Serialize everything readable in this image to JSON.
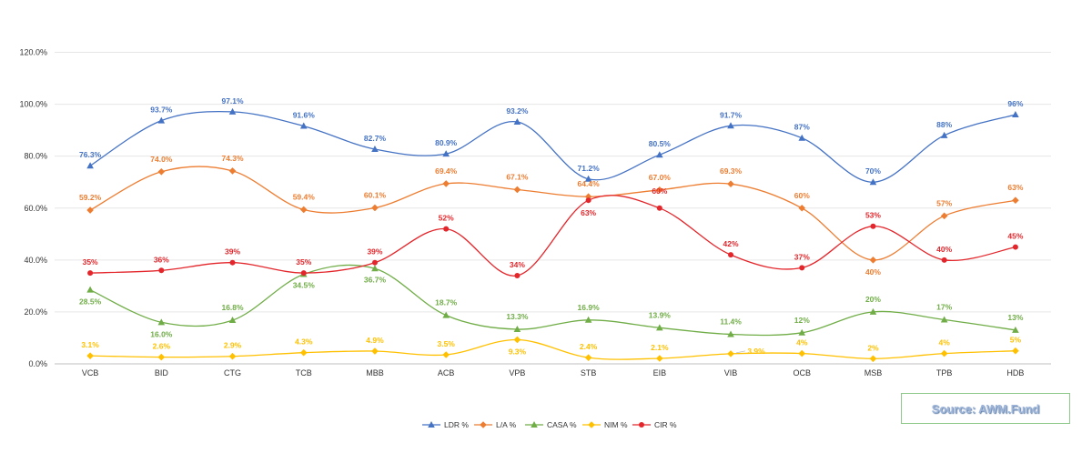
{
  "chart_data": {
    "type": "line",
    "title": "",
    "xlabel": "",
    "ylabel": "",
    "ylim": [
      0,
      120
    ],
    "yticks": [
      "0.0%",
      "20.0%",
      "40.0%",
      "60.0%",
      "80.0%",
      "100.0%",
      "120.0%"
    ],
    "ytick_values": [
      0,
      20,
      40,
      60,
      80,
      100,
      120
    ],
    "grid": true,
    "legend_position": "bottom-center",
    "categories": [
      "VCB",
      "BID",
      "CTG",
      "TCB",
      "MBB",
      "ACB",
      "VPB",
      "STB",
      "EIB",
      "VIB",
      "OCB",
      "MSB",
      "TPB",
      "HDB"
    ],
    "series": [
      {
        "name": "LDR %",
        "color": "#4472c4",
        "marker": "triangle",
        "values": [
          76.3,
          93.7,
          97.1,
          91.6,
          82.7,
          80.9,
          93.2,
          71.2,
          80.5,
          91.7,
          87,
          70,
          88,
          96
        ],
        "labels": [
          "76.3%",
          "93.7%",
          "97.1%",
          "91.6%",
          "82.7%",
          "80.9%",
          "93.2%",
          "71.2%",
          "80.5%",
          "91.7%",
          "87%",
          "70%",
          "88%",
          "96%"
        ]
      },
      {
        "name": "L/A %",
        "color": "#ed7d31",
        "marker": "diamond",
        "values": [
          59.2,
          74.0,
          74.3,
          59.4,
          60.1,
          69.4,
          67.1,
          64.4,
          67.0,
          69.3,
          60,
          40,
          57,
          63
        ],
        "labels": [
          "59.2%",
          "74.0%",
          "74.3%",
          "59.4%",
          "60.1%",
          "69.4%",
          "67.1%",
          "64.4%",
          "67.0%",
          "69.3%",
          "60%",
          "40%",
          "57%",
          "63%"
        ]
      },
      {
        "name": "CASA %",
        "color": "#70ad47",
        "marker": "triangle",
        "values": [
          28.5,
          16.0,
          16.8,
          34.5,
          36.7,
          18.7,
          13.3,
          16.9,
          13.9,
          11.4,
          12,
          20,
          17,
          13
        ],
        "labels": [
          "28.5%",
          "16.0%",
          "16.8%",
          "34.5%",
          "36.7%",
          "18.7%",
          "13.3%",
          "16.9%",
          "13.9%",
          "11.4%",
          "12%",
          "20%",
          "17%",
          "13%"
        ]
      },
      {
        "name": "NIM %",
        "color": "#ffc000",
        "marker": "diamond",
        "values": [
          3.1,
          2.6,
          2.9,
          4.3,
          4.9,
          3.5,
          9.3,
          2.4,
          2.1,
          3.9,
          4,
          2,
          4,
          5
        ],
        "labels": [
          "3.1%",
          "2.6%",
          "2.9%",
          "4.3%",
          "4.9%",
          "3.5%",
          "9.3%",
          "2.4%",
          "2.1%",
          "3.9%",
          "4%",
          "2%",
          "4%",
          "5%"
        ]
      },
      {
        "name": "CIR %",
        "color": "#e3262b",
        "marker": "circle",
        "values": [
          35,
          36,
          39,
          35,
          39,
          52,
          34,
          63,
          60,
          42,
          37,
          53,
          40,
          45
        ],
        "labels": [
          "35%",
          "36%",
          "39%",
          "35%",
          "39%",
          "52%",
          "34%",
          "63%",
          "60%",
          "42%",
          "37%",
          "53%",
          "40%",
          "45%"
        ]
      }
    ]
  },
  "source": {
    "text": "Source: AWM.Fund"
  }
}
